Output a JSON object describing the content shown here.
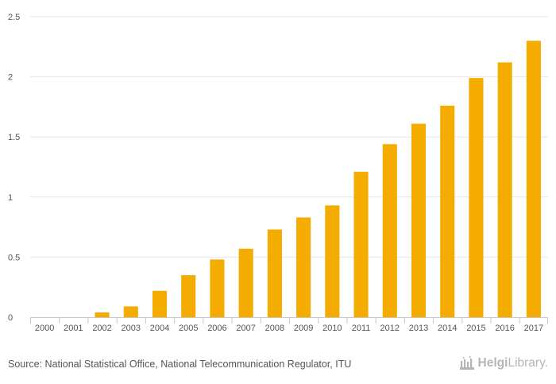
{
  "chart_data": {
    "type": "bar",
    "title": "",
    "xlabel": "",
    "ylabel": "",
    "categories": [
      "2000",
      "2001",
      "2002",
      "2003",
      "2004",
      "2005",
      "2006",
      "2007",
      "2008",
      "2009",
      "2010",
      "2011",
      "2012",
      "2013",
      "2014",
      "2015",
      "2016",
      "2017"
    ],
    "values": [
      0,
      0,
      0.04,
      0.09,
      0.22,
      0.35,
      0.48,
      0.57,
      0.73,
      0.83,
      0.93,
      1.21,
      1.44,
      1.61,
      1.76,
      1.99,
      2.12,
      2.3
    ],
    "ylim": [
      0,
      2.5
    ],
    "yticks": [
      "0",
      "0.5",
      "1",
      "1.5",
      "2",
      "2.5"
    ],
    "grid": true,
    "legend": "none",
    "bar_color": "#f5ac00"
  },
  "footer": {
    "source": "Source: National Statistical Office, National Telecommunication Regulator, ITU",
    "brand_bold": "Helgi",
    "brand_light": "Library."
  },
  "colors": {
    "gridline": "#e6e6e6",
    "axis": "#c8c8c8",
    "brand": "#b5b5b5"
  }
}
